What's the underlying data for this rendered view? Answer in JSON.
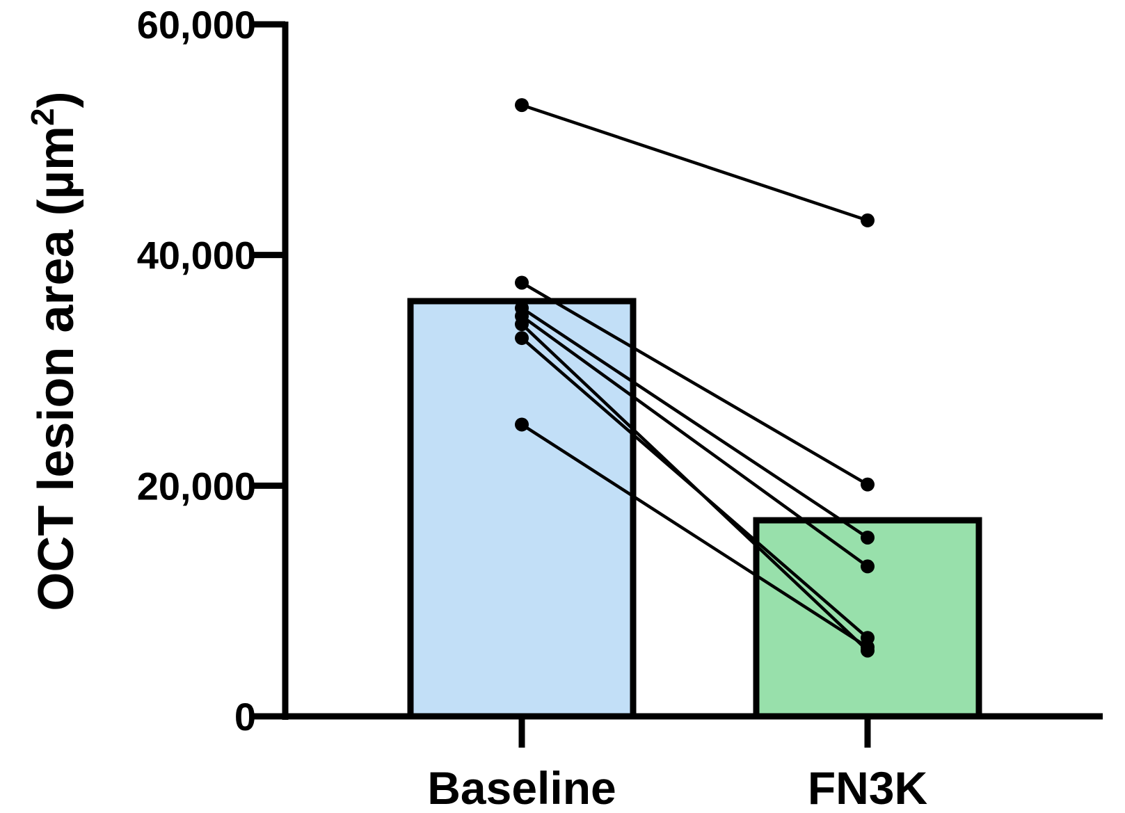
{
  "chart_data": {
    "type": "bar",
    "categories": [
      "Baseline",
      "FN3K"
    ],
    "values": [
      36000,
      17000
    ],
    "bar_colors": [
      "#c2dff7",
      "#98e0ab"
    ],
    "ylabel_text": "OCT lesion area (µm",
    "ylabel_superscript": "2",
    "ylabel_close": ")",
    "ylim": [
      0,
      60000
    ],
    "yticks": [
      0,
      20000,
      40000,
      60000
    ],
    "ytick_labels": [
      "0",
      "20,000",
      "40,000",
      "60,000"
    ],
    "grid": false,
    "legend": "none",
    "paired_points": [
      {
        "baseline": 53000,
        "fn3k": 43000
      },
      {
        "baseline": 37600,
        "fn3k": 20100
      },
      {
        "baseline": 35400,
        "fn3k": 15500
      },
      {
        "baseline": 34700,
        "fn3k": 13000
      },
      {
        "baseline": 32800,
        "fn3k": 6800
      },
      {
        "baseline": 34000,
        "fn3k": 5700
      },
      {
        "baseline": 25300,
        "fn3k": 6000
      }
    ]
  }
}
